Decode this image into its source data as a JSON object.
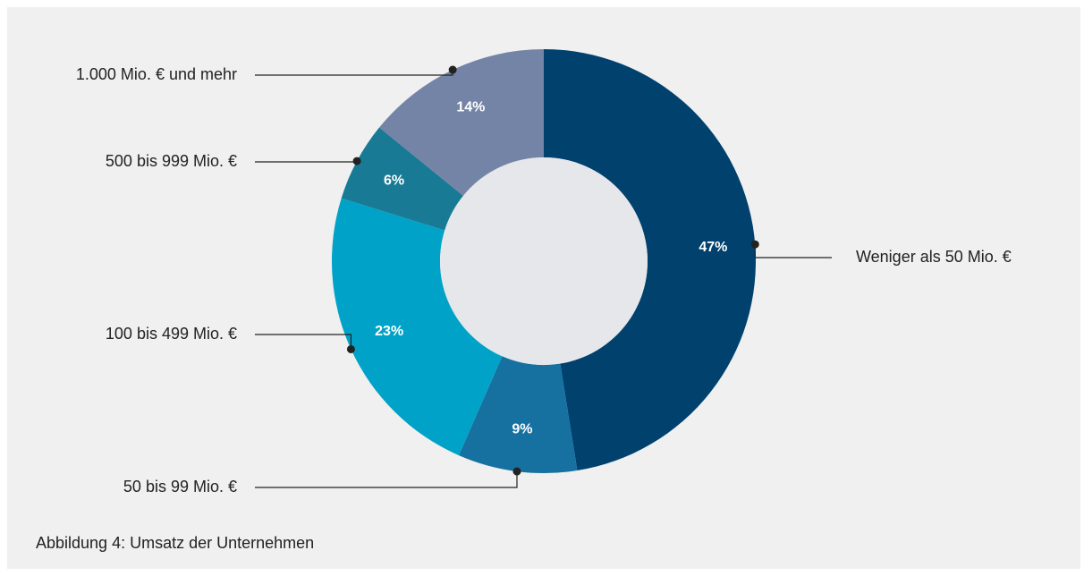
{
  "chart_data": {
    "type": "donut",
    "categories": [
      "Weniger als 50 Mio. €",
      "50 bis 99 Mio. €",
      "100 bis 499 Mio. €",
      "500 bis 999 Mio. €",
      "1.000 Mio. € und mehr"
    ],
    "values": [
      47,
      9,
      23,
      6,
      14
    ],
    "value_labels": [
      "47%",
      "9%",
      "23%",
      "6%",
      "14%"
    ],
    "colors": [
      "#00416e",
      "#1670a0",
      "#00a3c7",
      "#187a94",
      "#7484a6"
    ],
    "caption": "Abbildung 4: Umsatz der Unternehmen"
  }
}
